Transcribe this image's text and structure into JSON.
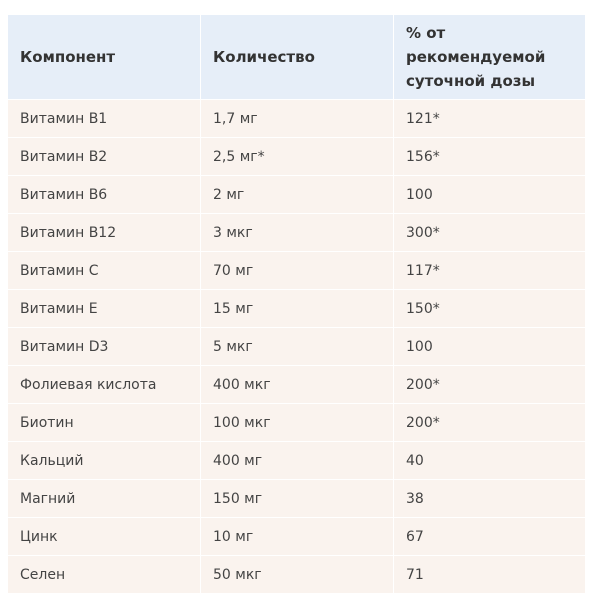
{
  "table": {
    "headers": [
      "Компонент",
      "Количество",
      "% от рекомендуемой суточной дозы"
    ],
    "rows": [
      [
        "Витамин В1",
        "1,7 мг",
        "121*"
      ],
      [
        "Витамин В2",
        "2,5 мг*",
        "156*"
      ],
      [
        "Витамин В6",
        "2 мг",
        "100"
      ],
      [
        "Витамин В12",
        "3 мкг",
        "300*"
      ],
      [
        "Витамин С",
        "70 мг",
        "117*"
      ],
      [
        "Витамин Е",
        "15 мг",
        "150*"
      ],
      [
        "Витамин D3",
        "5 мкг",
        "100"
      ],
      [
        "Фолиевая кислота",
        "400 мкг",
        "200*"
      ],
      [
        "Биотин",
        "100 мкг",
        "200*"
      ],
      [
        "Кальций",
        "400 мг",
        "40"
      ],
      [
        "Магний",
        "150 мг",
        "38"
      ],
      [
        "Цинк",
        "10 мг",
        "67"
      ],
      [
        "Селен",
        "50 мкг",
        "71"
      ]
    ]
  },
  "colors": {
    "header_bg": "#e6eef8",
    "row_bg": "#faf3ee",
    "header_text": "#333333",
    "cell_text": "#444444"
  }
}
